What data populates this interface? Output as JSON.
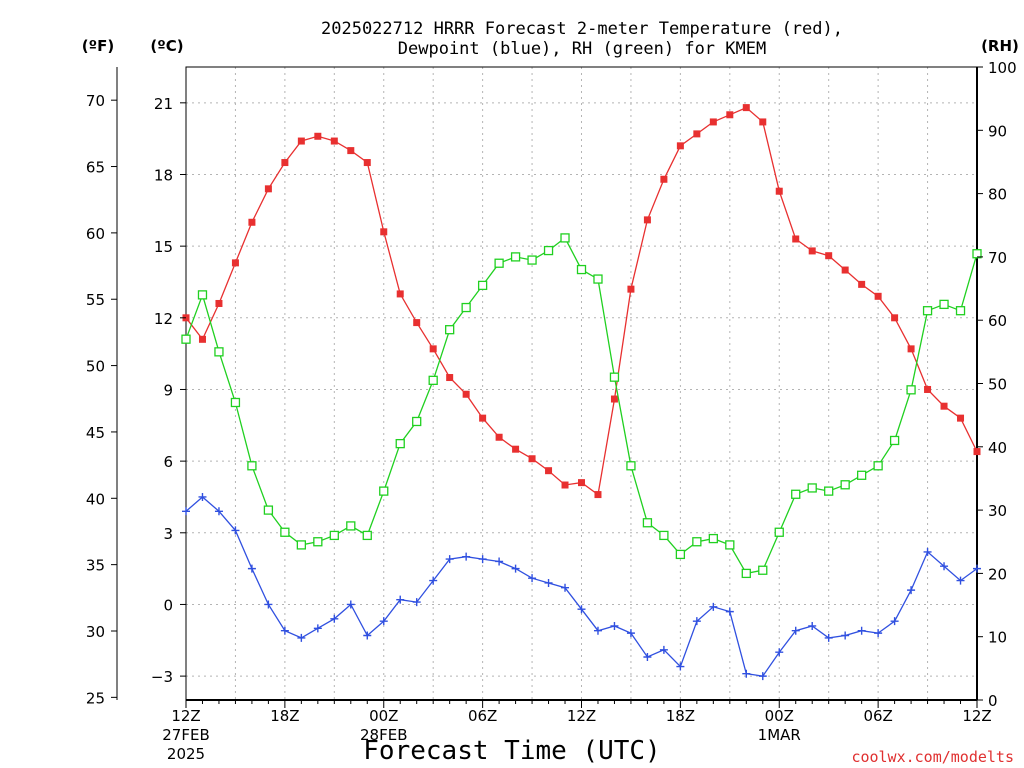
{
  "chart_data": {
    "type": "line",
    "title_lines": [
      "2025022712 HRRR Forecast 2-meter Temperature (red),",
      "Dewpoint (blue), RH (green) for KMEM"
    ],
    "xlabel": "Forecast Time (UTC)",
    "credit": "coolwx.com/modelts",
    "units": {
      "fahrenheit": "(ºF)",
      "celsius": "(ºC)",
      "rh": "(RH)"
    },
    "x_tick_labels": [
      "12Z",
      "18Z",
      "00Z",
      "06Z",
      "12Z",
      "18Z",
      "00Z",
      "06Z",
      "12Z"
    ],
    "date_labels": [
      {
        "hour": 0,
        "lines": [
          "27FEB",
          "2025"
        ]
      },
      {
        "hour": 12,
        "lines": [
          "28FEB"
        ]
      },
      {
        "hour": 36,
        "lines": [
          "1MAR"
        ]
      }
    ],
    "x_range_hours": [
      0,
      48
    ],
    "celsius_axis": {
      "range": [
        -4,
        22.5
      ],
      "ticks": [
        -3,
        0,
        3,
        6,
        9,
        12,
        15,
        18,
        21
      ]
    },
    "fahrenheit_axis": {
      "range": [
        24.8,
        72.5
      ],
      "ticks": [
        25,
        30,
        35,
        40,
        45,
        50,
        55,
        60,
        65,
        70
      ]
    },
    "rh_axis": {
      "range": [
        0,
        100
      ],
      "ticks": [
        0,
        10,
        20,
        30,
        40,
        50,
        60,
        70,
        80,
        90,
        100
      ]
    },
    "grid": true,
    "series": [
      {
        "key": "temperature",
        "color": "#e83030",
        "marker": "filled-square",
        "axis": "celsius",
        "values": [
          12.0,
          11.1,
          12.6,
          14.3,
          16.0,
          17.4,
          18.5,
          19.4,
          19.6,
          19.4,
          19.0,
          18.5,
          15.6,
          13.0,
          11.8,
          10.7,
          9.5,
          8.8,
          7.8,
          7.0,
          6.5,
          6.1,
          5.6,
          5.0,
          5.1,
          4.6,
          8.6,
          13.2,
          16.1,
          17.8,
          19.2,
          19.7,
          20.2,
          20.5,
          20.8,
          20.2,
          17.3,
          15.3,
          14.8,
          14.6,
          14.0,
          13.4,
          12.9,
          12.0,
          10.7,
          9.0,
          8.3,
          7.8,
          6.4
        ]
      },
      {
        "key": "dewpoint",
        "color": "#3050e0",
        "marker": "plus",
        "axis": "celsius",
        "values": [
          3.9,
          4.5,
          3.9,
          3.1,
          1.5,
          0.0,
          -1.1,
          -1.4,
          -1.0,
          -0.6,
          0.0,
          -1.3,
          -0.7,
          0.2,
          0.1,
          1.0,
          1.9,
          2.0,
          1.9,
          1.8,
          1.5,
          1.1,
          0.9,
          0.7,
          -0.2,
          -1.1,
          -0.9,
          -1.2,
          -2.2,
          -1.9,
          -2.6,
          -0.7,
          -0.1,
          -0.3,
          -2.9,
          -3.0,
          -2.0,
          -1.1,
          -0.9,
          -1.4,
          -1.3,
          -1.1,
          -1.2,
          -0.7,
          0.6,
          2.2,
          1.6,
          1.0,
          1.5
        ]
      },
      {
        "key": "rh",
        "color": "#20d020",
        "marker": "open-square",
        "axis": "rh",
        "values": [
          57,
          64,
          55,
          47,
          37,
          30,
          26.5,
          24.5,
          25,
          26,
          27.5,
          26,
          33,
          40.5,
          44,
          50.5,
          58.5,
          62,
          65.5,
          69,
          70,
          69.5,
          71,
          73,
          68,
          66.5,
          51,
          37,
          28,
          26,
          23,
          25,
          25.5,
          24.5,
          20,
          20.5,
          26.5,
          32.5,
          33.5,
          33,
          34,
          35.5,
          37,
          41,
          49,
          61.5,
          62.5,
          61.5,
          70.5
        ]
      }
    ]
  }
}
